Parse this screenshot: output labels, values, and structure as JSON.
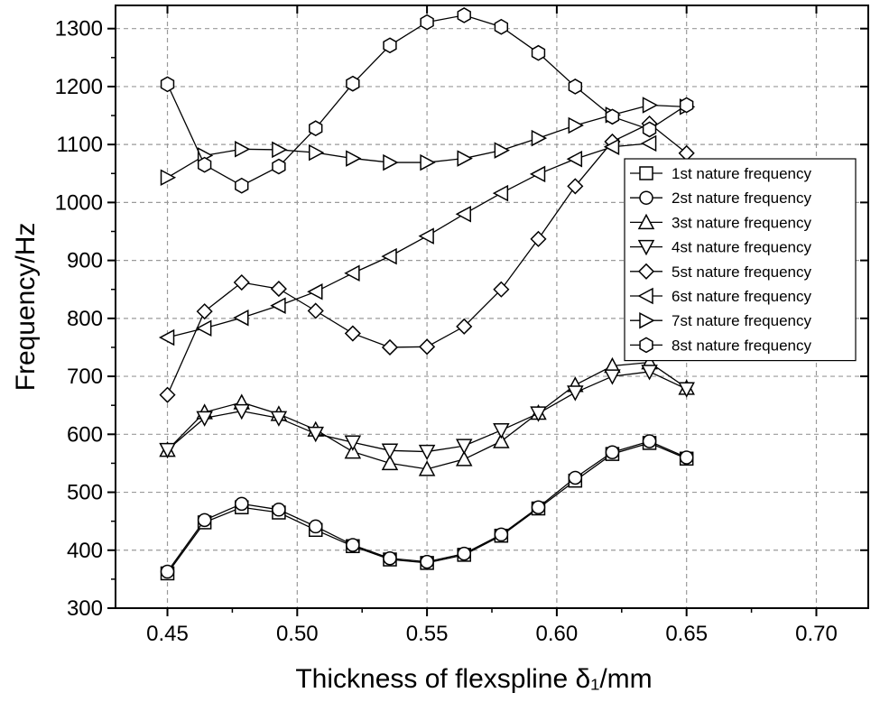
{
  "chart_data": {
    "type": "line",
    "xlabel": "Thickness of flexspline δ₁/mm",
    "ylabel": "Frequency/Hz",
    "xlim": [
      0.43,
      0.72
    ],
    "ylim": [
      300,
      1340
    ],
    "xticks": [
      "0.45",
      "0.50",
      "0.55",
      "0.60",
      "0.65",
      "0.70"
    ],
    "xtick_values": [
      0.45,
      0.5,
      0.55,
      0.6,
      0.65,
      0.7
    ],
    "yticks": [
      "300",
      "400",
      "500",
      "600",
      "700",
      "800",
      "900",
      "1000",
      "1100",
      "1200",
      "1300"
    ],
    "ytick_values": [
      300,
      400,
      500,
      600,
      700,
      800,
      900,
      1000,
      1100,
      1200,
      1300
    ],
    "grid": true,
    "legend_position": "right",
    "x": [
      0.45,
      0.4643,
      0.4786,
      0.4929,
      0.5071,
      0.5214,
      0.5357,
      0.55,
      0.5643,
      0.5786,
      0.5929,
      0.6071,
      0.6214,
      0.6357,
      0.65
    ],
    "series": [
      {
        "name": "1st nature frequency",
        "marker": "square",
        "values": [
          360,
          448,
          474,
          465,
          435,
          407,
          384,
          378,
          392,
          425,
          472,
          520,
          566,
          585,
          558
        ]
      },
      {
        "name": "2st nature frequency",
        "marker": "circle",
        "values": [
          363,
          452,
          480,
          470,
          441,
          409,
          386,
          380,
          394,
          427,
          474,
          525,
          569,
          588,
          560
        ]
      },
      {
        "name": "3st nature frequency",
        "marker": "triangle-up",
        "values": [
          573,
          638,
          655,
          635,
          608,
          570,
          550,
          540,
          557,
          588,
          637,
          685,
          718,
          724,
          680
        ]
      },
      {
        "name": "4st nature frequency",
        "marker": "triangle-down",
        "values": [
          573,
          628,
          640,
          628,
          601,
          586,
          572,
          570,
          580,
          607,
          636,
          672,
          700,
          708,
          678
        ]
      },
      {
        "name": "5st nature frequency",
        "marker": "diamond",
        "values": [
          668,
          812,
          862,
          851,
          813,
          774,
          750,
          751,
          786,
          850,
          937,
          1028,
          1105,
          1136,
          1085
        ]
      },
      {
        "name": "6st nature frequency",
        "marker": "triangle-left",
        "values": [
          767,
          783,
          801,
          822,
          846,
          878,
          907,
          942,
          980,
          1016,
          1049,
          1075,
          1096,
          1102,
          null
        ]
      },
      {
        "name": "7st nature frequency",
        "marker": "triangle-right",
        "values": [
          1043,
          1081,
          1092,
          1091,
          1086,
          1076,
          1069,
          1069,
          1076,
          1090,
          1111,
          1133,
          1151,
          1168,
          1165
        ]
      },
      {
        "name": "8st nature frequency",
        "marker": "hexagon",
        "values": [
          1204,
          1065,
          1029,
          1062,
          1128,
          1205,
          1271,
          1311,
          1323,
          1303,
          1258,
          1200,
          1148,
          1126,
          1168
        ]
      }
    ]
  }
}
